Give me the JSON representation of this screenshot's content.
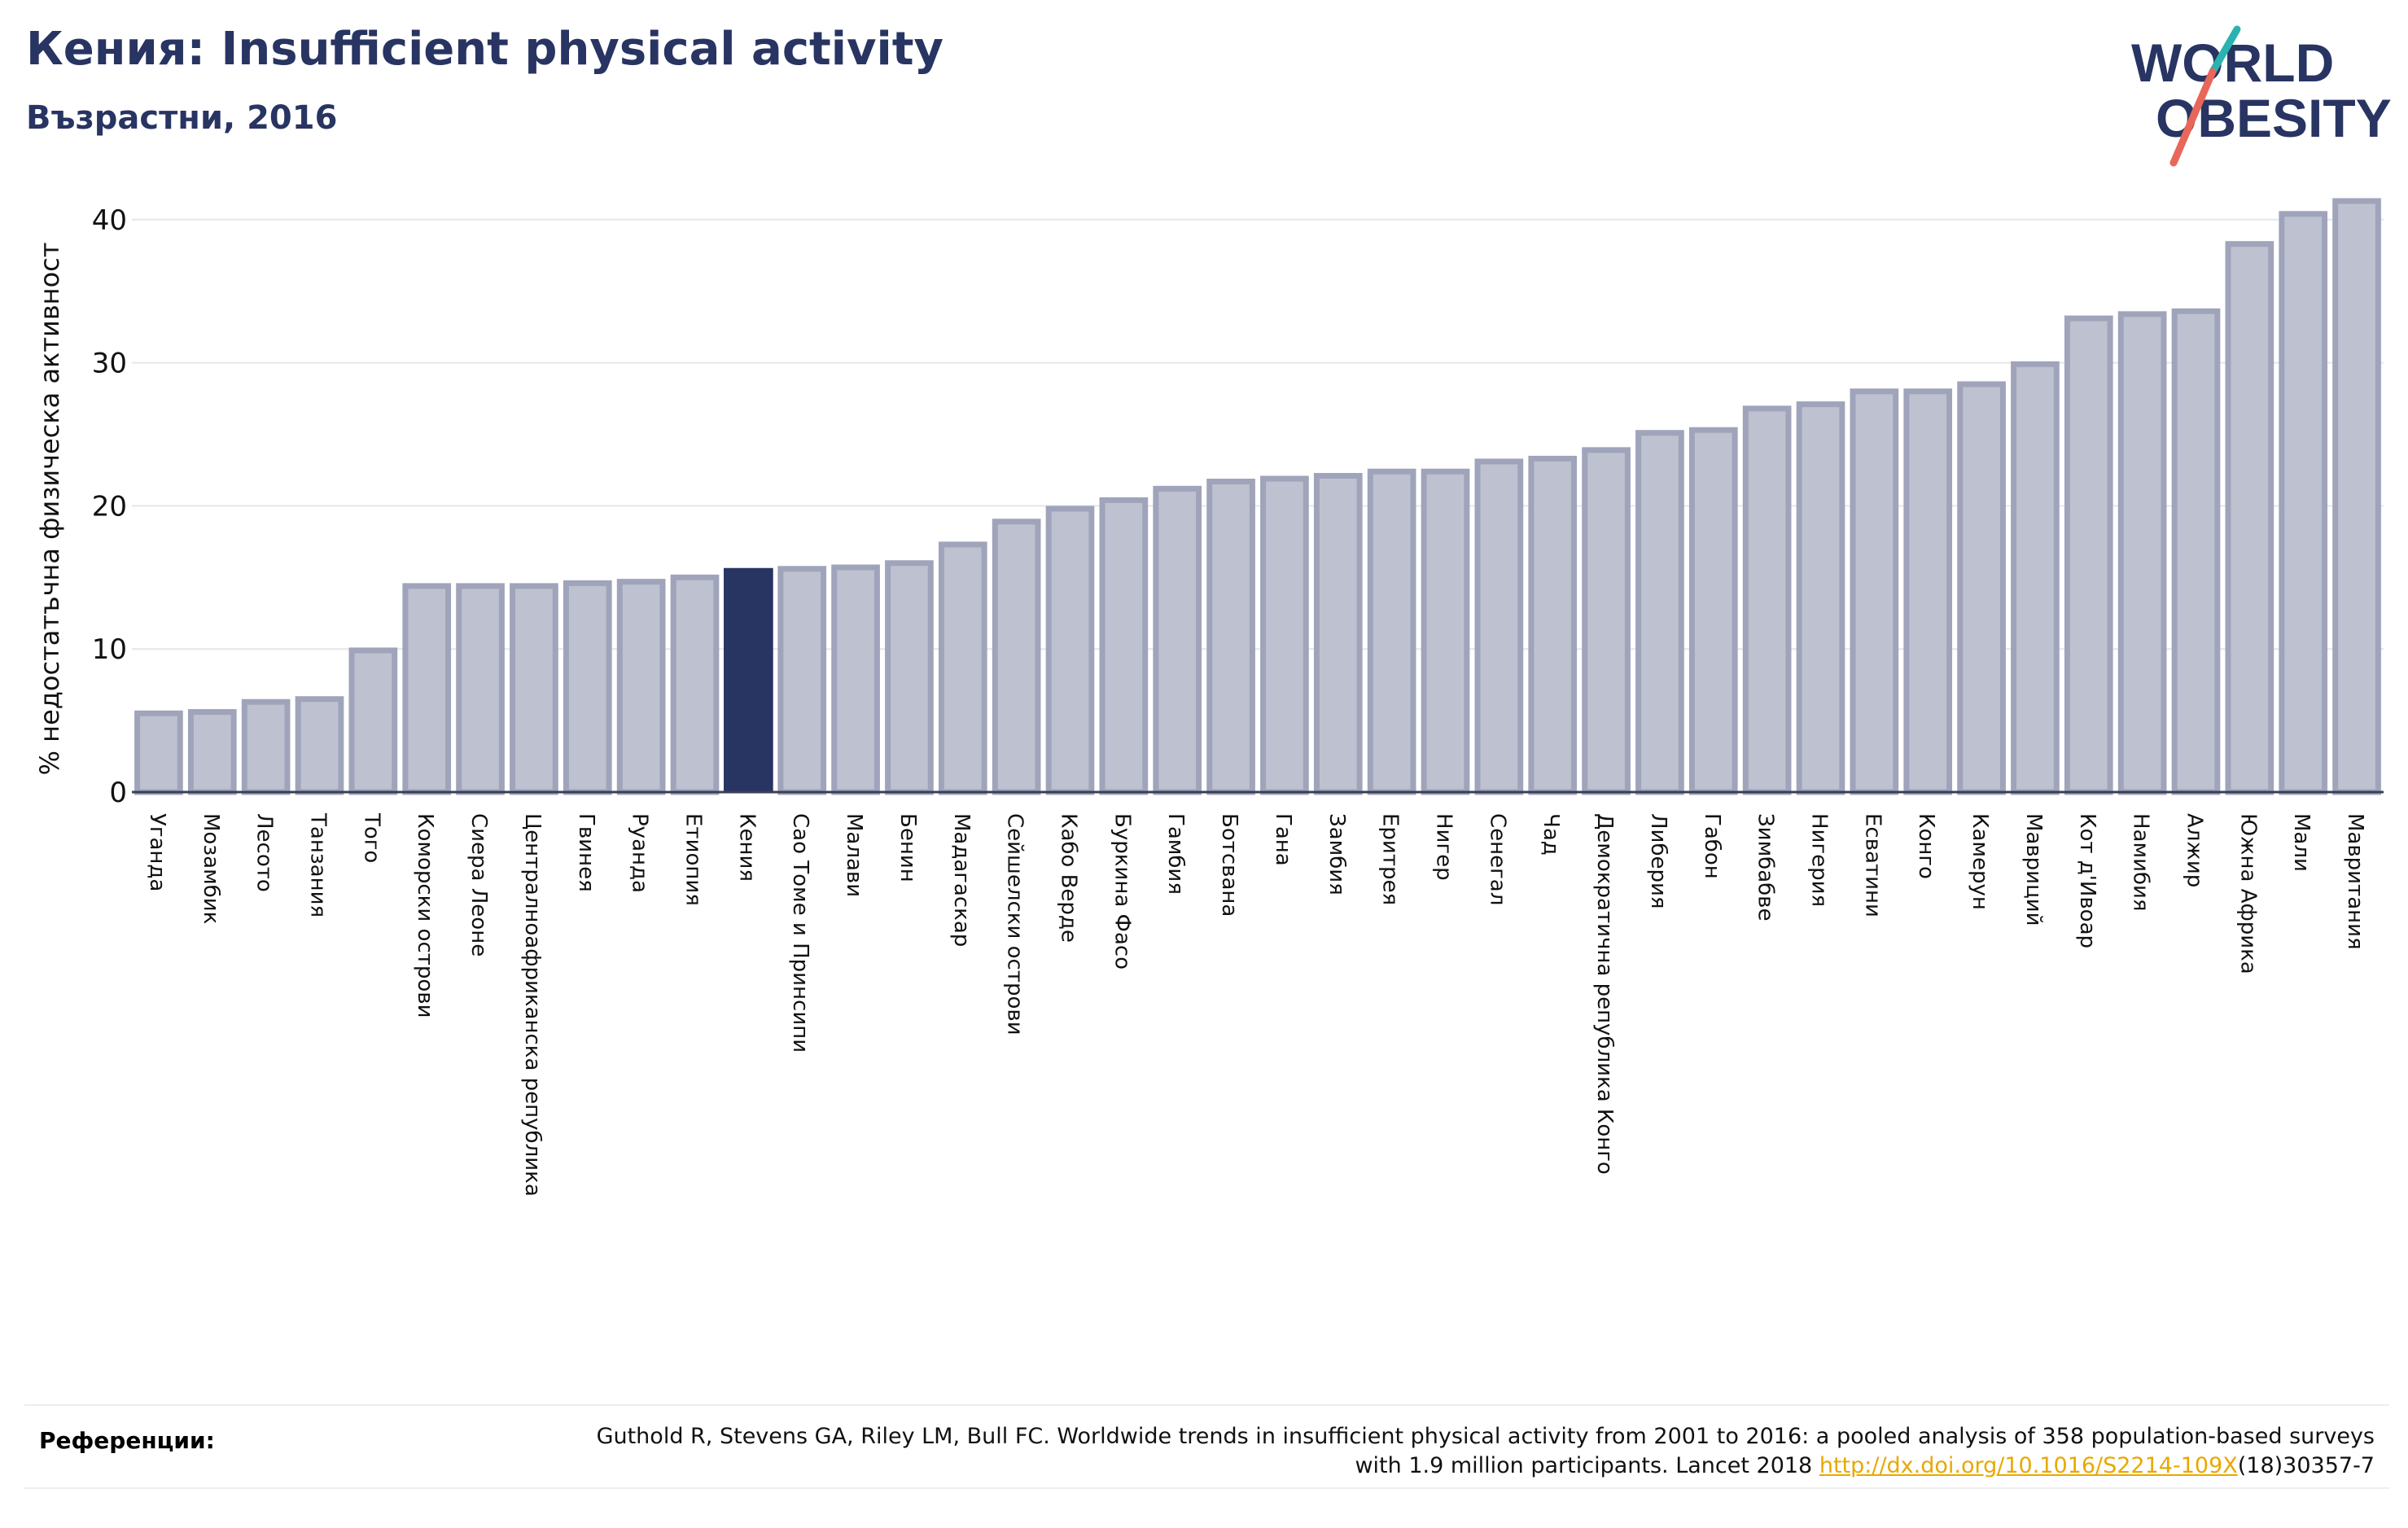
{
  "header": {
    "title": "Кения: Insufficient physical activity",
    "subtitle": "Възрастни, 2016"
  },
  "logo": {
    "line1": "WORLD",
    "line2": "OBESITY"
  },
  "colors": {
    "navy": "#283462",
    "bar_fill": "#bec1cf",
    "bar_edge": "#9fa4bb",
    "grid": "#e6e6ea",
    "accent_teal": "#2ab3b1",
    "accent_coral": "#e8675a"
  },
  "chart_data": {
    "type": "bar",
    "ylabel": "% недостатъчна физическа активност",
    "ylim": [
      0,
      42
    ],
    "yticks": [
      0,
      10,
      20,
      30,
      40
    ],
    "highlight": "Кения",
    "grid": true,
    "categories": [
      "Уганда",
      "Мозамбик",
      "Лесото",
      "Танзания",
      "Того",
      "Коморски острови",
      "Сиера Леоне",
      "Централноафриканска република",
      "Гвинея",
      "Руанда",
      "Етиопия",
      "Кения",
      "Сао Томе и Принсипи",
      "Малави",
      "Бенин",
      "Мадагаскар",
      "Сейшелски острови",
      "Кабо Верде",
      "Буркина Фасо",
      "Гамбия",
      "Ботсвана",
      "Гана",
      "Замбия",
      "Еритрея",
      "Нигер",
      "Сенегал",
      "Чад",
      "Демократична република Конго",
      "Либерия",
      "Габон",
      "Зимбабве",
      "Нигерия",
      "Есватини",
      "Конго",
      "Камерун",
      "Мавриций",
      "Кот д'Ивоар",
      "Намибия",
      "Алжир",
      "Южна Африка",
      "Мали",
      "Мавритания"
    ],
    "values": [
      5.5,
      5.6,
      6.3,
      6.5,
      9.9,
      14.4,
      14.4,
      14.4,
      14.6,
      14.7,
      15.0,
      15.6,
      15.6,
      15.7,
      16.0,
      17.3,
      18.9,
      19.8,
      20.4,
      21.2,
      21.7,
      21.9,
      22.1,
      22.4,
      22.4,
      23.1,
      23.3,
      23.9,
      25.1,
      25.3,
      26.8,
      27.1,
      28.0,
      28.0,
      28.5,
      29.9,
      33.1,
      33.4,
      33.6,
      38.3,
      40.4,
      41.3
    ]
  },
  "references": {
    "label": "Референции:",
    "text_before": "Guthold R, Stevens GA, Riley LM, Bull FC. Worldwide trends in insufficient physical activity from 2001 to 2016: a pooled analysis of 358 population-based surveys with 1.9 million participants. Lancet 2018 ",
    "link": "http://dx.doi.org/10.1016/S2214-109X",
    "text_after": "(18)30357-7"
  }
}
